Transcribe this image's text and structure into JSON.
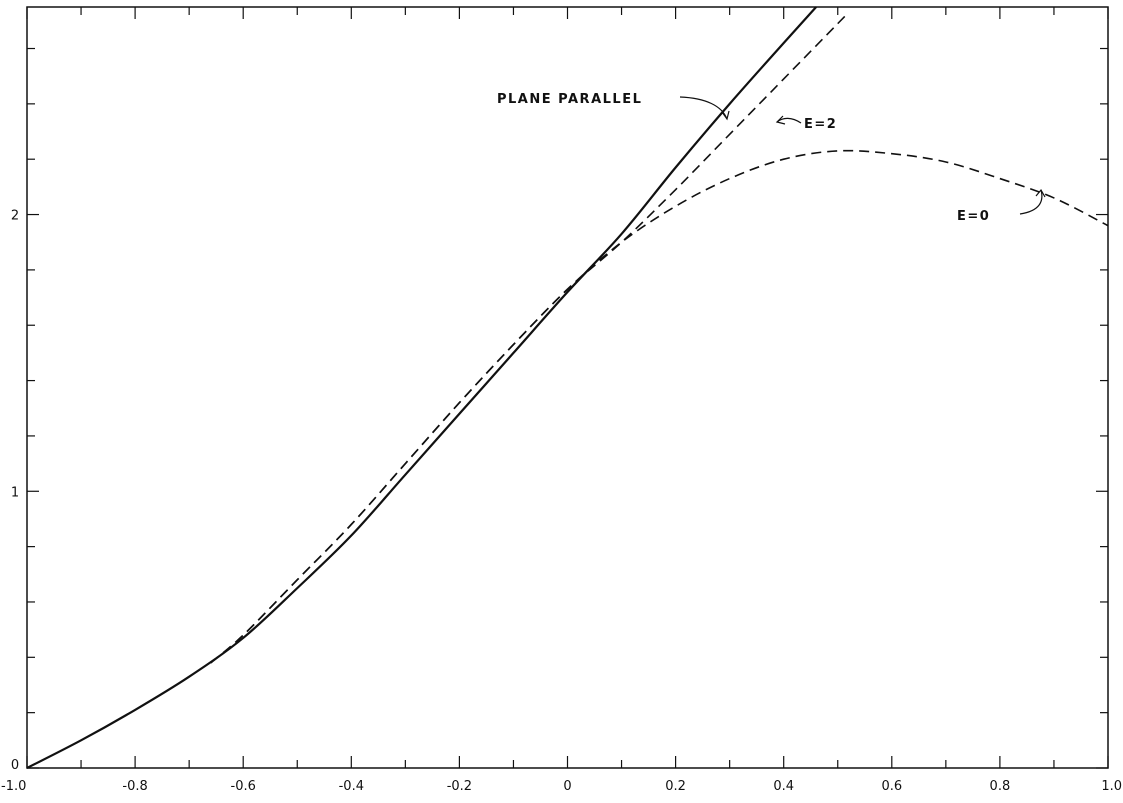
{
  "chart_data": {
    "type": "line",
    "title": "",
    "xlabel": "",
    "ylabel": "",
    "xlim": [
      -1.0,
      1.0
    ],
    "ylim": [
      0,
      2.75
    ],
    "x_ticks": [
      -1.0,
      -0.8,
      -0.6,
      -0.4,
      -0.2,
      0,
      0.2,
      0.4,
      0.6,
      0.8,
      1.0
    ],
    "x_tick_labels": [
      "-1.0",
      "-0.8",
      "-0.6",
      "-0.4",
      "-0.2",
      "0",
      "0.2",
      "0.4",
      "0.6",
      "0.8",
      "1.0"
    ],
    "x_minor_step": 0.1,
    "y_ticks": [
      0,
      1,
      2
    ],
    "y_tick_labels": [
      "0",
      "1",
      "2"
    ],
    "y_minor_step": 0.2,
    "grid": false,
    "series": [
      {
        "name": "PLANE PARALLEL",
        "style": "solid",
        "x": [
          -1.0,
          -0.9,
          -0.8,
          -0.7,
          -0.6,
          -0.5,
          -0.4,
          -0.3,
          -0.2,
          -0.1,
          0.0,
          0.1,
          0.2,
          0.3,
          0.4,
          0.46
        ],
        "y": [
          0.0,
          0.1,
          0.21,
          0.33,
          0.47,
          0.65,
          0.84,
          1.06,
          1.28,
          1.5,
          1.72,
          1.93,
          2.17,
          2.4,
          2.62,
          2.75
        ]
      },
      {
        "name": "E=2",
        "style": "dashed",
        "x": [
          -0.66,
          -0.6,
          -0.5,
          -0.4,
          -0.3,
          -0.2,
          -0.1,
          0.0,
          0.1,
          0.2,
          0.3,
          0.4,
          0.52
        ],
        "y": [
          0.38,
          0.48,
          0.68,
          0.88,
          1.1,
          1.32,
          1.53,
          1.73,
          1.9,
          2.09,
          2.29,
          2.49,
          2.73
        ]
      },
      {
        "name": "E=0",
        "style": "dashed",
        "x": [
          -0.66,
          -0.6,
          -0.5,
          -0.4,
          -0.3,
          -0.2,
          -0.1,
          0.0,
          0.1,
          0.2,
          0.3,
          0.4,
          0.5,
          0.6,
          0.7,
          0.8,
          0.9,
          1.0
        ],
        "y": [
          0.38,
          0.48,
          0.68,
          0.88,
          1.1,
          1.32,
          1.53,
          1.73,
          1.9,
          2.03,
          2.13,
          2.2,
          2.23,
          2.22,
          2.19,
          2.13,
          2.06,
          1.96
        ]
      }
    ],
    "annotations": [
      {
        "text": "PLANE PARALLEL",
        "target_series": "PLANE PARALLEL"
      },
      {
        "text": "E=2",
        "target_series": "E=2"
      },
      {
        "text": "E=0",
        "target_series": "E=0"
      }
    ]
  }
}
